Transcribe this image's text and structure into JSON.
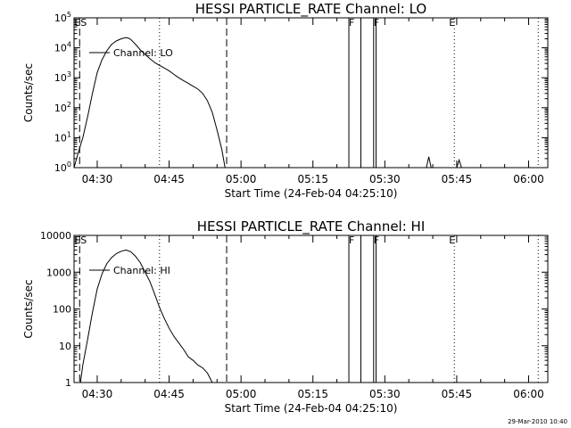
{
  "footer": {
    "timestamp": "29-Mar-2010 10:40"
  },
  "chart_data": [
    {
      "type": "line",
      "title": "HESSI PARTICLE_RATE Channel: LO",
      "xlabel": "Start Time (24-Feb-04 04:25:10)",
      "ylabel": "Counts/sec",
      "yscale": "log",
      "xlim": [
        "04:25:10",
        "06:04:00"
      ],
      "ylim": [
        1,
        100000
      ],
      "xticks": [
        "04:30",
        "04:45",
        "05:00",
        "05:15",
        "05:30",
        "05:45",
        "06:00"
      ],
      "yticks": [
        {
          "value": 1,
          "base": "10",
          "exp": "0"
        },
        {
          "value": 10,
          "base": "10",
          "exp": "1"
        },
        {
          "value": 100,
          "base": "10",
          "exp": "2"
        },
        {
          "value": 1000,
          "base": "10",
          "exp": "3"
        },
        {
          "value": 10000,
          "base": "10",
          "exp": "4"
        },
        {
          "value": 100000,
          "base": "10",
          "exp": "5"
        }
      ],
      "legend": "Channel: LO",
      "legend_position": "top-left",
      "series": [
        {
          "name": "Channel: LO",
          "x": [
            "04:25:10",
            "04:26:00",
            "04:27:00",
            "04:28:00",
            "04:29:00",
            "04:30:00",
            "04:31:00",
            "04:32:00",
            "04:33:00",
            "04:34:00",
            "04:35:00",
            "04:36:00",
            "04:36:30",
            "04:37:00",
            "04:38:00",
            "04:39:00",
            "04:40:00",
            "04:41:00",
            "04:42:00",
            "04:43:00",
            "04:44:00",
            "04:45:00",
            "04:46:00",
            "04:47:00",
            "04:48:00",
            "04:49:00",
            "04:50:00",
            "04:51:00",
            "04:52:00",
            "04:53:00",
            "04:54:00",
            "04:55:00",
            "04:56:00",
            "04:56:40"
          ],
          "y": [
            1,
            3,
            10,
            50,
            300,
            1500,
            4000,
            8000,
            13000,
            17000,
            20000,
            22000,
            21000,
            19000,
            13000,
            8500,
            6000,
            4300,
            3200,
            2600,
            2100,
            1700,
            1300,
            1000,
            800,
            650,
            520,
            420,
            300,
            170,
            70,
            18,
            4,
            1
          ]
        },
        {
          "name": "spike-1",
          "x": [
            "05:38:40",
            "05:39:10",
            "05:39:40"
          ],
          "y": [
            1,
            2.3,
            1
          ]
        },
        {
          "name": "spike-2",
          "x": [
            "05:45:00",
            "05:45:30",
            "05:46:00"
          ],
          "y": [
            1,
            1.8,
            1
          ]
        }
      ],
      "markers": [
        {
          "time": "04:26:20",
          "style": "dashed",
          "label": "ES"
        },
        {
          "time": "04:43:00",
          "style": "dotted",
          "label": ""
        },
        {
          "time": "04:57:00",
          "style": "dashed",
          "label": ""
        },
        {
          "time": "05:44:30",
          "style": "dotted",
          "label": "E"
        },
        {
          "time": "06:02:00",
          "style": "dotted",
          "label": ""
        }
      ],
      "flare_bars": [
        {
          "start": "05:22:30",
          "end": "05:25:00",
          "label": "F"
        },
        {
          "start": "05:27:40",
          "end": "05:28:10",
          "label": "F"
        }
      ]
    },
    {
      "type": "line",
      "title": "HESSI PARTICLE_RATE Channel: HI",
      "xlabel": "Start Time (24-Feb-04 04:25:10)",
      "ylabel": "Counts/sec",
      "yscale": "log",
      "xlim": [
        "04:25:10",
        "06:04:00"
      ],
      "ylim": [
        1,
        10000
      ],
      "xticks": [
        "04:30",
        "04:45",
        "05:00",
        "05:15",
        "05:30",
        "05:45",
        "06:00"
      ],
      "yticks": [
        {
          "value": 1,
          "label": "1"
        },
        {
          "value": 10,
          "label": "10"
        },
        {
          "value": 100,
          "label": "100"
        },
        {
          "value": 1000,
          "label": "1000"
        },
        {
          "value": 10000,
          "label": "10000"
        }
      ],
      "legend": "Channel: HI",
      "legend_position": "top-left",
      "series": [
        {
          "name": "Channel: HI",
          "x": [
            "04:26:30",
            "04:27:00",
            "04:28:00",
            "04:29:00",
            "04:30:00",
            "04:31:00",
            "04:32:00",
            "04:33:00",
            "04:34:00",
            "04:35:00",
            "04:36:00",
            "04:37:00",
            "04:38:00",
            "04:39:00",
            "04:40:00",
            "04:41:00",
            "04:42:00",
            "04:43:00",
            "04:44:00",
            "04:45:00",
            "04:46:00",
            "04:47:00",
            "04:48:00",
            "04:49:00",
            "04:50:00",
            "04:51:00",
            "04:52:00",
            "04:53:00",
            "04:54:00"
          ],
          "y": [
            1,
            3,
            15,
            80,
            350,
            900,
            1700,
            2500,
            3200,
            3700,
            4000,
            3600,
            2700,
            1800,
            1000,
            550,
            250,
            110,
            55,
            30,
            18,
            12,
            8,
            5,
            4,
            3,
            2.5,
            1.8,
            1
          ]
        }
      ],
      "markers": [
        {
          "time": "04:26:20",
          "style": "dashed",
          "label": "ES"
        },
        {
          "time": "04:43:00",
          "style": "dotted",
          "label": ""
        },
        {
          "time": "04:57:00",
          "style": "dashed",
          "label": ""
        },
        {
          "time": "05:44:30",
          "style": "dotted",
          "label": "E"
        },
        {
          "time": "06:02:00",
          "style": "dotted",
          "label": ""
        }
      ],
      "flare_bars": [
        {
          "start": "05:22:30",
          "end": "05:25:00",
          "label": "F"
        },
        {
          "start": "05:27:40",
          "end": "05:28:10",
          "label": "F"
        }
      ]
    }
  ]
}
